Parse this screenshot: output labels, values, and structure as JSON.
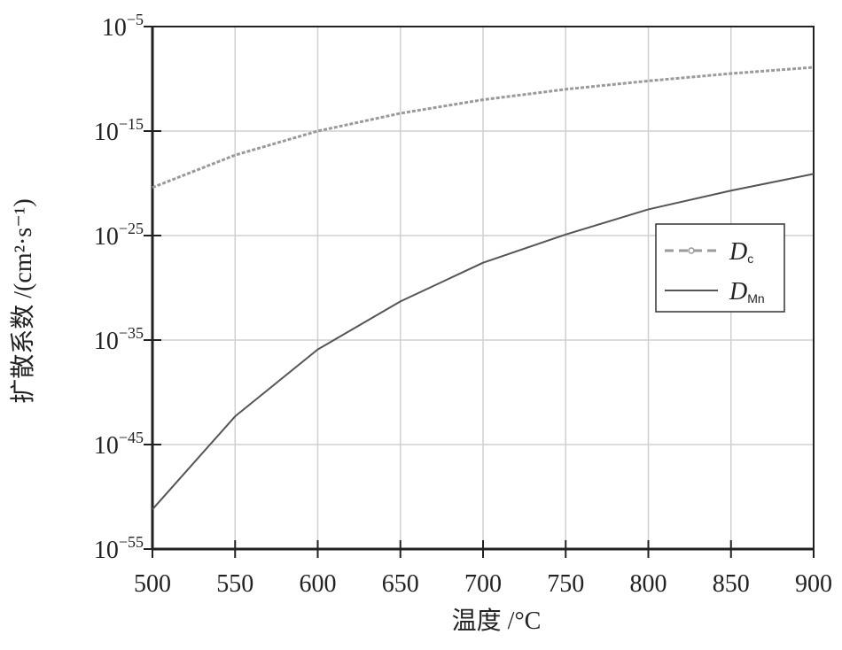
{
  "chart_data": {
    "type": "line",
    "x": [
      500,
      550,
      600,
      650,
      700,
      750,
      800,
      850,
      900
    ],
    "series": [
      {
        "name": "D",
        "name_sub": "c",
        "color": "#9a9a9a",
        "dash": true,
        "values": [
          3.98e-21,
          5e-18,
          1e-15,
          5e-14,
          1e-12,
          1e-11,
          6.3e-11,
          3.2e-10,
          1.26e-09
        ]
      },
      {
        "name": "D",
        "name_sub": "Mn",
        "color": "#555555",
        "dash": false,
        "values": [
          6.3e-52,
          5e-43,
          1.26e-36,
          5e-32,
          2.5e-28,
          1.26e-25,
          3.2e-23,
          2e-21,
          7.9e-20
        ]
      }
    ],
    "xlabel": "温度 /°C",
    "ylabel": "扩散系数 /(cm²·s⁻¹)",
    "xlim": [
      500,
      900
    ],
    "xticks": [
      500,
      550,
      600,
      650,
      700,
      750,
      800,
      850,
      900
    ],
    "ylim": [
      1e-55,
      1e-05
    ],
    "yticks": [
      {
        "value": 1e-55,
        "label": "10",
        "exponent": "−55"
      },
      {
        "value": 1e-45,
        "label": "10",
        "exponent": "−45"
      },
      {
        "value": 1e-35,
        "label": "10",
        "exponent": "−35"
      },
      {
        "value": 1e-25,
        "label": "10",
        "exponent": "−25"
      },
      {
        "value": 1e-15,
        "label": "10",
        "exponent": "−15"
      },
      {
        "value": 1e-05,
        "label": "10",
        "exponent": "−5"
      }
    ],
    "log_y": true,
    "grid": true
  }
}
